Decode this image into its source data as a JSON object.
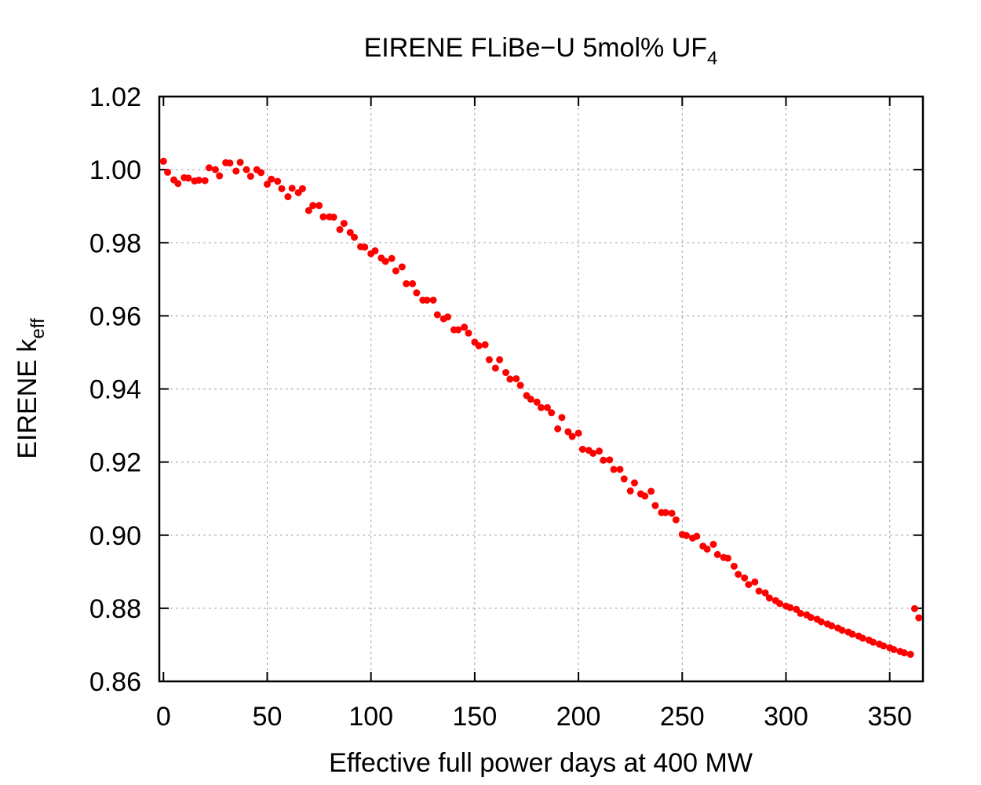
{
  "chart_data": {
    "type": "scatter",
    "title": "EIRENE FLiBe−U 5mol% UF",
    "title_subscript": "4",
    "xlabel": "Effective full power days at 400 MW",
    "ylabel": "EIRENE k",
    "ylabel_subscript": "eff",
    "xlim": [
      -2,
      366
    ],
    "ylim": [
      0.86,
      1.02
    ],
    "xticks": [
      "0",
      "50",
      "100",
      "150",
      "200",
      "250",
      "300",
      "350"
    ],
    "xtick_values": [
      0,
      50,
      100,
      150,
      200,
      250,
      300,
      350
    ],
    "yticks": [
      "0.86",
      "0.88",
      "0.90",
      "0.92",
      "0.94",
      "0.96",
      "0.98",
      "1.00",
      "1.02"
    ],
    "ytick_values": [
      0.86,
      0.88,
      0.9,
      0.92,
      0.94,
      0.96,
      0.98,
      1.0,
      1.02
    ],
    "grid": true,
    "marker_color": "#ff0000",
    "error": 0.0007,
    "points": [
      [
        0,
        1.0023
      ],
      [
        2,
        0.9993
      ],
      [
        5,
        0.9972
      ],
      [
        7,
        0.9962
      ],
      [
        10,
        0.9978
      ],
      [
        12,
        0.9977
      ],
      [
        15,
        0.9969
      ],
      [
        17,
        0.9971
      ],
      [
        20,
        0.997
      ],
      [
        22,
        1.0005
      ],
      [
        25,
        1.0
      ],
      [
        27,
        0.9983
      ],
      [
        30,
        1.0019
      ],
      [
        32,
        1.0018
      ],
      [
        35,
        0.9996
      ],
      [
        37,
        1.002
      ],
      [
        40,
        1.0
      ],
      [
        42,
        0.9982
      ],
      [
        45,
        1.0
      ],
      [
        47,
        0.9992
      ],
      [
        50,
        0.996
      ],
      [
        52,
        0.9974
      ],
      [
        55,
        0.9968
      ],
      [
        57,
        0.9948
      ],
      [
        60,
        0.9926
      ],
      [
        62,
        0.9949
      ],
      [
        65,
        0.9937
      ],
      [
        67,
        0.9948
      ],
      [
        70,
        0.9888
      ],
      [
        72,
        0.9902
      ],
      [
        75,
        0.9902
      ],
      [
        77,
        0.9871
      ],
      [
        80,
        0.9871
      ],
      [
        82,
        0.987
      ],
      [
        85,
        0.9836
      ],
      [
        87,
        0.9853
      ],
      [
        90,
        0.9828
      ],
      [
        92,
        0.9815
      ],
      [
        95,
        0.9789
      ],
      [
        97,
        0.9788
      ],
      [
        100,
        0.977
      ],
      [
        102,
        0.9778
      ],
      [
        105,
        0.9758
      ],
      [
        107,
        0.9749
      ],
      [
        110,
        0.9757
      ],
      [
        112,
        0.9723
      ],
      [
        115,
        0.9734
      ],
      [
        117,
        0.9688
      ],
      [
        120,
        0.9688
      ],
      [
        122,
        0.9663
      ],
      [
        125,
        0.9643
      ],
      [
        127,
        0.9643
      ],
      [
        130,
        0.9643
      ],
      [
        132,
        0.9603
      ],
      [
        135,
        0.9592
      ],
      [
        137,
        0.9597
      ],
      [
        140,
        0.9562
      ],
      [
        142,
        0.9562
      ],
      [
        145,
        0.9569
      ],
      [
        147,
        0.9553
      ],
      [
        150,
        0.9528
      ],
      [
        152,
        0.9518
      ],
      [
        155,
        0.9521
      ],
      [
        157,
        0.948
      ],
      [
        160,
        0.9457
      ],
      [
        162,
        0.948
      ],
      [
        165,
        0.9445
      ],
      [
        167,
        0.9427
      ],
      [
        170,
        0.9428
      ],
      [
        172,
        0.941
      ],
      [
        175,
        0.9382
      ],
      [
        177,
        0.9372
      ],
      [
        180,
        0.9364
      ],
      [
        182,
        0.9349
      ],
      [
        185,
        0.9349
      ],
      [
        187,
        0.9335
      ],
      [
        190,
        0.9291
      ],
      [
        192,
        0.9322
      ],
      [
        195,
        0.9283
      ],
      [
        197,
        0.927
      ],
      [
        200,
        0.9279
      ],
      [
        202,
        0.9235
      ],
      [
        205,
        0.9232
      ],
      [
        207,
        0.9224
      ],
      [
        210,
        0.923
      ],
      [
        212,
        0.9205
      ],
      [
        215,
        0.9206
      ],
      [
        217,
        0.918
      ],
      [
        220,
        0.918
      ],
      [
        222,
        0.9154
      ],
      [
        225,
        0.9121
      ],
      [
        227,
        0.9143
      ],
      [
        230,
        0.9113
      ],
      [
        232,
        0.9107
      ],
      [
        235,
        0.912
      ],
      [
        237,
        0.9081
      ],
      [
        240,
        0.9062
      ],
      [
        242,
        0.9062
      ],
      [
        245,
        0.906
      ],
      [
        247,
        0.9042
      ],
      [
        250,
        0.9002
      ],
      [
        252,
        0.8999
      ],
      [
        255,
        0.8992
      ],
      [
        257,
        0.8997
      ],
      [
        260,
        0.897
      ],
      [
        262,
        0.8962
      ],
      [
        265,
        0.8975
      ],
      [
        267,
        0.8947
      ],
      [
        270,
        0.8939
      ],
      [
        272,
        0.8937
      ],
      [
        275,
        0.8915
      ],
      [
        277,
        0.8893
      ],
      [
        280,
        0.8883
      ],
      [
        282,
        0.8865
      ],
      [
        285,
        0.8872
      ],
      [
        287,
        0.8847
      ],
      [
        290,
        0.8842
      ],
      [
        292,
        0.8828
      ],
      [
        295,
        0.8821
      ],
      [
        297,
        0.8813
      ],
      [
        300,
        0.8806
      ],
      [
        302,
        0.8802
      ],
      [
        305,
        0.8797
      ],
      [
        307,
        0.8786
      ],
      [
        310,
        0.8782
      ],
      [
        312,
        0.8775
      ],
      [
        315,
        0.877
      ],
      [
        317,
        0.8763
      ],
      [
        320,
        0.8757
      ],
      [
        322,
        0.8752
      ],
      [
        325,
        0.8746
      ],
      [
        327,
        0.874
      ],
      [
        330,
        0.8735
      ],
      [
        332,
        0.8729
      ],
      [
        335,
        0.8724
      ],
      [
        337,
        0.8718
      ],
      [
        340,
        0.8713
      ],
      [
        342,
        0.8707
      ],
      [
        345,
        0.8702
      ],
      [
        347,
        0.8697
      ],
      [
        350,
        0.8692
      ],
      [
        352,
        0.8687
      ],
      [
        355,
        0.8682
      ],
      [
        357,
        0.8678
      ],
      [
        360,
        0.8674
      ],
      [
        362,
        0.8799
      ],
      [
        364,
        0.8774
      ]
    ]
  }
}
